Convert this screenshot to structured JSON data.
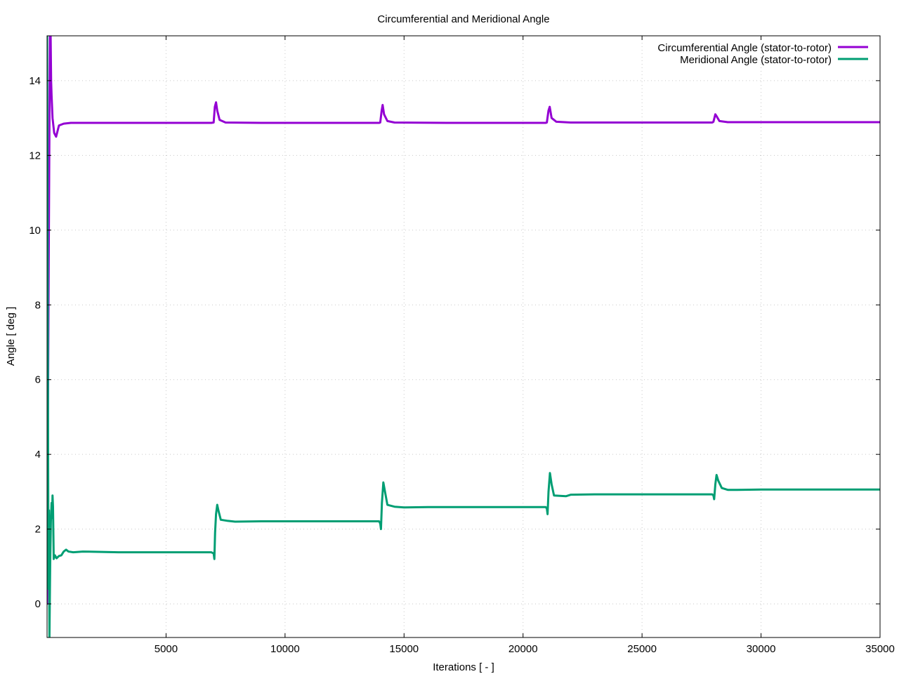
{
  "chart_data": {
    "type": "line",
    "title": "Circumferential and Meridional Angle",
    "xlabel": "Iterations [ - ]",
    "ylabel": "Angle [ deg ]",
    "xlim": [
      0,
      35000
    ],
    "ylim": [
      -0.9,
      15.2
    ],
    "xticks": [
      5000,
      10000,
      15000,
      20000,
      25000,
      30000,
      35000
    ],
    "yticks": [
      0,
      2,
      4,
      6,
      8,
      10,
      12,
      14
    ],
    "grid": true,
    "legend_position": "top-right",
    "series": [
      {
        "name": "Circumferential Angle (stator-to-rotor)",
        "color": "#9400d3",
        "points": [
          [
            0,
            0
          ],
          [
            60,
            8
          ],
          [
            120,
            15.2
          ],
          [
            150,
            15.2
          ],
          [
            170,
            14.0
          ],
          [
            190,
            13.6
          ],
          [
            230,
            13.0
          ],
          [
            300,
            12.6
          ],
          [
            380,
            12.5
          ],
          [
            500,
            12.8
          ],
          [
            700,
            12.85
          ],
          [
            1000,
            12.87
          ],
          [
            3000,
            12.87
          ],
          [
            6900,
            12.87
          ],
          [
            7000,
            12.88
          ],
          [
            7050,
            13.3
          ],
          [
            7100,
            13.42
          ],
          [
            7150,
            13.2
          ],
          [
            7250,
            12.95
          ],
          [
            7500,
            12.88
          ],
          [
            9000,
            12.87
          ],
          [
            13950,
            12.87
          ],
          [
            14000,
            12.88
          ],
          [
            14060,
            13.2
          ],
          [
            14100,
            13.35
          ],
          [
            14160,
            13.1
          ],
          [
            14300,
            12.92
          ],
          [
            14600,
            12.88
          ],
          [
            17000,
            12.87
          ],
          [
            20950,
            12.87
          ],
          [
            21000,
            12.88
          ],
          [
            21070,
            13.2
          ],
          [
            21120,
            13.3
          ],
          [
            21200,
            13.0
          ],
          [
            21400,
            12.9
          ],
          [
            22000,
            12.88
          ],
          [
            25000,
            12.88
          ],
          [
            27950,
            12.88
          ],
          [
            28000,
            12.9
          ],
          [
            28080,
            13.1
          ],
          [
            28130,
            13.05
          ],
          [
            28250,
            12.92
          ],
          [
            28600,
            12.89
          ],
          [
            35000,
            12.89
          ]
        ]
      },
      {
        "name": "Meridional Angle (stator-to-rotor)",
        "color": "#009e73",
        "points": [
          [
            0,
            15.2
          ],
          [
            40,
            5.0
          ],
          [
            60,
            0.4
          ],
          [
            80,
            2.5
          ],
          [
            100,
            -0.9
          ],
          [
            130,
            1.0
          ],
          [
            160,
            2.2
          ],
          [
            190,
            2.7
          ],
          [
            210,
            2.3
          ],
          [
            230,
            2.9
          ],
          [
            250,
            2.6
          ],
          [
            280,
            1.2
          ],
          [
            330,
            1.3
          ],
          [
            400,
            1.22
          ],
          [
            500,
            1.28
          ],
          [
            600,
            1.3
          ],
          [
            700,
            1.4
          ],
          [
            800,
            1.45
          ],
          [
            900,
            1.4
          ],
          [
            1100,
            1.38
          ],
          [
            1500,
            1.4
          ],
          [
            3000,
            1.38
          ],
          [
            6900,
            1.38
          ],
          [
            7000,
            1.35
          ],
          [
            7030,
            1.2
          ],
          [
            7060,
            1.9
          ],
          [
            7100,
            2.4
          ],
          [
            7150,
            2.65
          ],
          [
            7200,
            2.5
          ],
          [
            7300,
            2.25
          ],
          [
            7600,
            2.22
          ],
          [
            7900,
            2.2
          ],
          [
            9000,
            2.21
          ],
          [
            13950,
            2.21
          ],
          [
            14000,
            2.15
          ],
          [
            14030,
            2.0
          ],
          [
            14070,
            2.7
          ],
          [
            14130,
            3.25
          ],
          [
            14200,
            3.0
          ],
          [
            14300,
            2.65
          ],
          [
            14600,
            2.6
          ],
          [
            15000,
            2.58
          ],
          [
            16000,
            2.59
          ],
          [
            20950,
            2.59
          ],
          [
            21000,
            2.55
          ],
          [
            21030,
            2.4
          ],
          [
            21070,
            3.0
          ],
          [
            21130,
            3.5
          ],
          [
            21200,
            3.2
          ],
          [
            21300,
            2.9
          ],
          [
            21800,
            2.88
          ],
          [
            22000,
            2.92
          ],
          [
            23000,
            2.93
          ],
          [
            27950,
            2.93
          ],
          [
            28000,
            2.9
          ],
          [
            28030,
            2.8
          ],
          [
            28080,
            3.2
          ],
          [
            28130,
            3.45
          ],
          [
            28200,
            3.3
          ],
          [
            28350,
            3.1
          ],
          [
            28600,
            3.05
          ],
          [
            29000,
            3.05
          ],
          [
            30000,
            3.06
          ],
          [
            35000,
            3.06
          ]
        ]
      }
    ]
  }
}
